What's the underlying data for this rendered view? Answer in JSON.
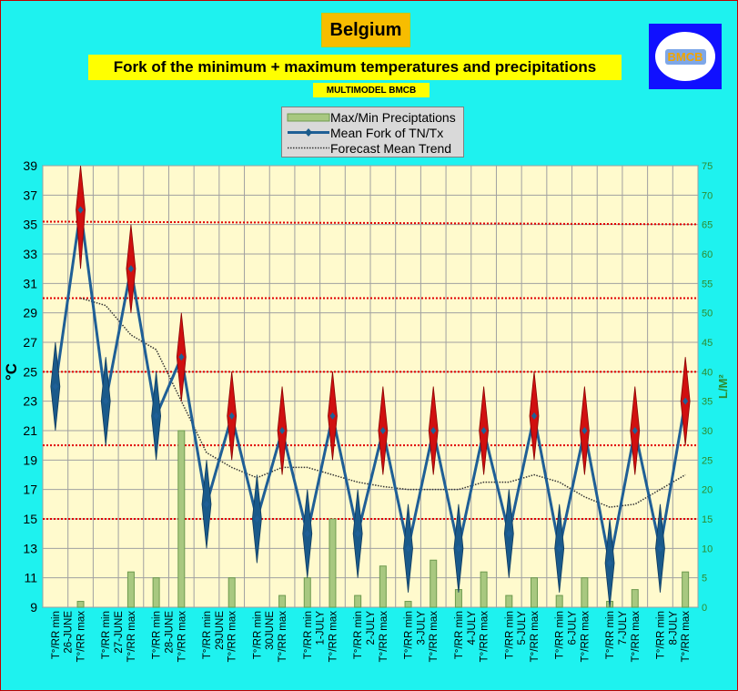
{
  "header": {
    "title": "Belgium",
    "subtitle": "Fork of the minimum + maximum temperatures and precipitations",
    "sub_subtitle": "MULTIMODEL BMCB",
    "logo_text": "BMCB"
  },
  "legend": {
    "items": [
      "Max/Min Preciptations",
      "Mean Fork of TN/Tx",
      "Forecast Mean Trend"
    ]
  },
  "colors": {
    "background": "#1ef2ef",
    "plot_bg": "#fffacd",
    "line": "#1f5f96",
    "marker": "#1a5a8a",
    "max_marker": "#d01010",
    "bars": "#a8c880",
    "ref_lines": "#e00000",
    "trend": "#333333"
  },
  "chart_data": {
    "type": "line",
    "ylabel": "°C",
    "y2label": "L/M²",
    "ylim": [
      9,
      39
    ],
    "y_ticks": [
      9,
      11,
      13,
      15,
      17,
      19,
      21,
      23,
      25,
      27,
      29,
      31,
      33,
      35,
      37,
      39
    ],
    "y2lim": [
      0,
      75
    ],
    "y2_ticks": [
      0,
      5,
      10,
      15,
      20,
      25,
      30,
      35,
      40,
      45,
      50,
      55,
      60,
      65,
      70,
      75
    ],
    "grid": true,
    "legend_position": "top-center",
    "x_labels": [
      {
        "top": "T°/RR min",
        "date": "26-JUNE",
        "bottom": "T°/RR max"
      },
      {
        "top": "T°/RR min",
        "date": "27-JUNE",
        "bottom": "T°/RR max"
      },
      {
        "top": "T°/RR min",
        "date": "28-JUNE",
        "bottom": "T°/RR max"
      },
      {
        "top": "T°/RR min",
        "date": "29JUNE",
        "bottom": "T°/RR max"
      },
      {
        "top": "T°/RR min",
        "date": "30JUNE",
        "bottom": "T°/RR max"
      },
      {
        "top": "T°/RR min",
        "date": "1-JULY",
        "bottom": "T°/RR max"
      },
      {
        "top": "T°/RR min",
        "date": "2-JULY",
        "bottom": "T°/RR max"
      },
      {
        "top": "T°/RR min",
        "date": "3-JULY",
        "bottom": "T°/RR max"
      },
      {
        "top": "T°/RR min",
        "date": "4-JULY",
        "bottom": "T°/RR max"
      },
      {
        "top": "T°/RR min",
        "date": "5-JULY",
        "bottom": "T°/RR max"
      },
      {
        "top": "T°/RR min",
        "date": "6-JULY",
        "bottom": "T°/RR max"
      },
      {
        "top": "T°/RR min",
        "date": "7-JULY",
        "bottom": "T°/RR max"
      },
      {
        "top": "T°/RR min",
        "date": "8-JULY",
        "bottom": "T°/RR max"
      }
    ],
    "series": [
      {
        "name": "Mean Fork of TN/Tx",
        "values": [
          24,
          36,
          23,
          32,
          22,
          26,
          16,
          22,
          15,
          21,
          14,
          22,
          14,
          21,
          13,
          21,
          13,
          21,
          14,
          22,
          13,
          21,
          12,
          21,
          13,
          23
        ],
        "fork_low": [
          21,
          32,
          20,
          29,
          19,
          23,
          13,
          19,
          12,
          18,
          11,
          19,
          11,
          18,
          10,
          18,
          10,
          18,
          11,
          19,
          10,
          18,
          9,
          18,
          10,
          20
        ],
        "fork_high": [
          27,
          39,
          26,
          35,
          25,
          29,
          19,
          25,
          18,
          24,
          17,
          25,
          17,
          24,
          16,
          24,
          16,
          24,
          17,
          25,
          16,
          24,
          15,
          24,
          16,
          26
        ]
      },
      {
        "name": "Max/Min Preciptations",
        "axis": "right",
        "values": [
          0,
          1,
          0,
          6,
          5,
          30,
          0,
          5,
          0,
          2,
          5,
          15,
          2,
          7,
          1,
          8,
          3,
          6,
          2,
          5,
          2,
          5,
          1,
          3,
          0,
          6
        ]
      },
      {
        "name": "Forecast Mean Trend",
        "values": [
          null,
          30,
          29.5,
          27.5,
          26.5,
          23,
          19.5,
          18.5,
          17.8,
          18.5,
          18.5,
          18,
          17.5,
          17.2,
          17,
          17,
          17,
          17.5,
          17.5,
          18,
          17.5,
          16.5,
          15.8,
          16,
          17,
          18
        ]
      }
    ],
    "reference_lines": [
      35.2,
      30,
      25,
      20,
      15
    ]
  }
}
